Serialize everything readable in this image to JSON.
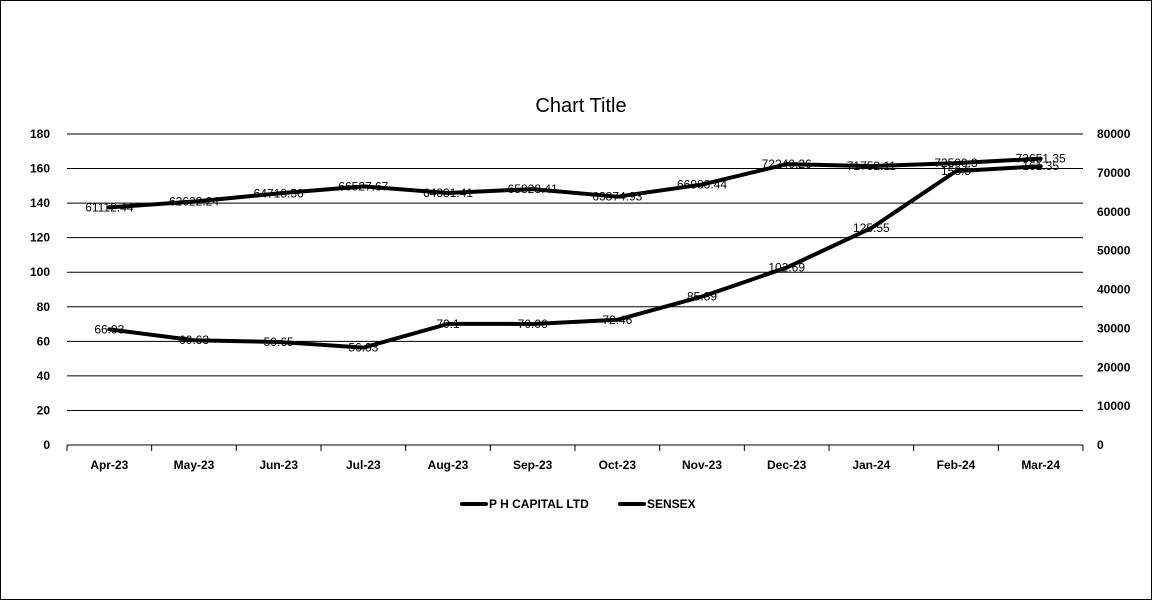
{
  "chart_data": {
    "type": "line",
    "title": "Chart Title",
    "categories": [
      "Apr-23",
      "May-23",
      "Jun-23",
      "Jul-23",
      "Aug-23",
      "Sep-23",
      "Oct-23",
      "Nov-23",
      "Dec-23",
      "Jan-24",
      "Feb-24",
      "Mar-24"
    ],
    "y_left": {
      "ylim": [
        0,
        180
      ],
      "ticks": [
        0,
        20,
        40,
        60,
        80,
        100,
        120,
        140,
        160,
        180
      ]
    },
    "y_right": {
      "ylim": [
        0,
        80000
      ],
      "ticks": [
        0,
        10000,
        20000,
        30000,
        40000,
        50000,
        60000,
        70000,
        80000
      ]
    },
    "grid": true,
    "legend_position": "bottom",
    "series": [
      {
        "name": "P H CAPITAL LTD",
        "axis": "left",
        "color": "#000000",
        "values": [
          66.93,
          60.63,
          59.65,
          56.33,
          70.1,
          70.06,
          72.46,
          85.89,
          102.69,
          125.55,
          158.5,
          161.35
        ],
        "labels": [
          "66.93",
          "60.63",
          "59.65",
          "56.33",
          "70.1",
          "70.06",
          "72.46",
          "85.89",
          "102.69",
          "125.55",
          "158.5",
          "161.35"
        ]
      },
      {
        "name": "SENSEX",
        "axis": "right",
        "color": "#000000",
        "values": [
          61112.44,
          62622.24,
          64718.56,
          66527.67,
          64831.41,
          65828.41,
          63874.93,
          66988.44,
          72240.26,
          71752.11,
          72500.3,
          73651.35
        ],
        "labels": [
          "61112.44",
          "62622.24",
          "64718.56",
          "66527.67",
          "64831.41",
          "65828.41",
          "63874.93",
          "66988.44",
          "72240.26",
          "71752.11",
          "72500.3",
          "73651.35"
        ]
      }
    ]
  }
}
